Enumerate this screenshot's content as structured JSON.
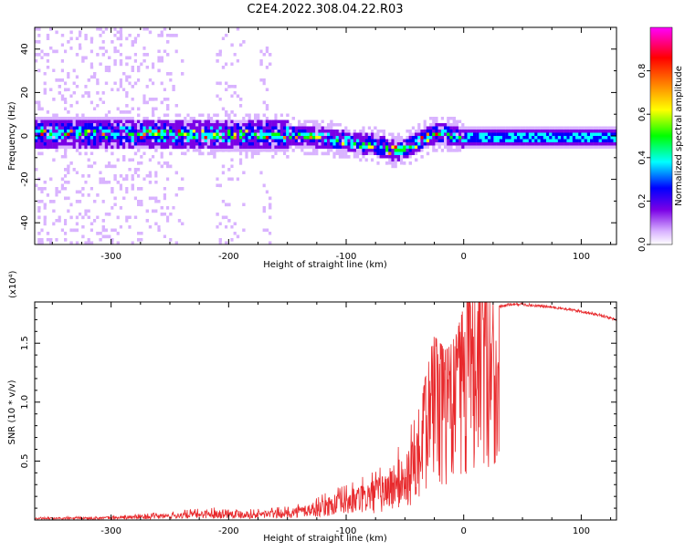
{
  "figure": {
    "title": "C2E4.2022.308.04.22.R03"
  },
  "chart_data": [
    {
      "type": "heatmap",
      "xlabel": "Height of straight line (km)",
      "ylabel": "Frequency (Hz)",
      "xlim": [
        -365,
        130
      ],
      "ylim": [
        -50,
        50
      ],
      "x_ticks": [
        -300,
        -200,
        -100,
        0,
        100
      ],
      "y_ticks": [
        -40,
        -20,
        0,
        20,
        40
      ],
      "colorbar": {
        "label": "Normalized spectral amplitude",
        "range": [
          0,
          1
        ],
        "ticks": [
          0.0,
          0.2,
          0.4,
          0.6,
          0.8
        ],
        "colors": [
          "#ffffff",
          "#d9b3ff",
          "#7a00e6",
          "#0000ff",
          "#00ffff",
          "#00ff00",
          "#ffff00",
          "#ff8000",
          "#ff0000",
          "#ff00ff"
        ]
      },
      "ridge": {
        "x": [
          -365,
          -300,
          -250,
          -200,
          -150,
          -120,
          -100,
          -80,
          -60,
          -50,
          -40,
          -30,
          -20,
          -10,
          0,
          50,
          100,
          130
        ],
        "freq": [
          2,
          2,
          1.5,
          1,
          1,
          0,
          -2,
          -3,
          -6,
          -5,
          -2,
          1,
          2,
          1,
          0,
          0,
          0,
          0
        ]
      }
    },
    {
      "type": "line",
      "xlabel": "Height of straight line (km)",
      "ylabel": "SNR (10 * v/v)",
      "y_multiplier": "(x10⁴)",
      "xlim": [
        -365,
        130
      ],
      "ylim": [
        0,
        18500
      ],
      "x_ticks": [
        -300,
        -200,
        -100,
        0,
        100
      ],
      "y_ticks": [
        5000,
        10000,
        15000
      ],
      "y_tick_labels": [
        "0.5",
        "1.0",
        "1.5"
      ],
      "line_color": "#e8292c",
      "series": [
        {
          "x": [
            -365,
            -300,
            -250,
            -220,
            -200,
            -180,
            -150,
            -130,
            -110,
            -90,
            -70,
            -55,
            -45,
            -40,
            -35,
            -30,
            -25,
            -20,
            -15,
            -10,
            -5,
            0,
            5,
            10,
            20,
            30,
            40,
            50,
            60,
            80,
            100,
            115,
            130
          ],
          "values": [
            200,
            300,
            600,
            900,
            1000,
            800,
            1000,
            1500,
            2300,
            3000,
            4000,
            5500,
            6500,
            7000,
            8500,
            11000,
            12500,
            12000,
            11500,
            12000,
            13000,
            14500,
            15500,
            16500,
            17500,
            18100,
            18300,
            18300,
            18200,
            18000,
            17700,
            17400,
            17000
          ]
        }
      ]
    }
  ]
}
